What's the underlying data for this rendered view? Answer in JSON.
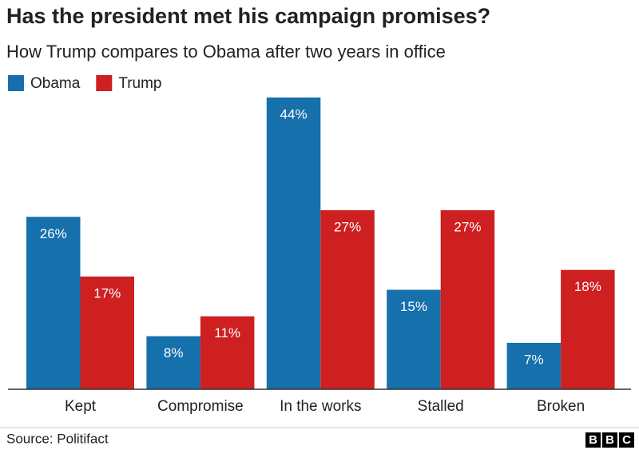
{
  "chart_data": {
    "type": "bar",
    "title": "Has the president met his campaign promises?",
    "subtitle": "How Trump compares to Obama after two years in office",
    "categories": [
      "Kept",
      "Compromise",
      "In the works",
      "Stalled",
      "Broken"
    ],
    "series": [
      {
        "name": "Obama",
        "color": "#1670ab",
        "values": [
          26,
          8,
          44,
          15,
          7
        ],
        "value_labels": [
          "26%",
          "8%",
          "44%",
          "15%",
          "7%"
        ]
      },
      {
        "name": "Trump",
        "color": "#ce1f21",
        "values": [
          17,
          11,
          27,
          27,
          18
        ],
        "value_labels": [
          "17%",
          "11%",
          "27%",
          "27%",
          "18%"
        ]
      }
    ],
    "legend": "top-left",
    "source": "Source: Politifact",
    "logo": [
      "B",
      "B",
      "C"
    ]
  }
}
